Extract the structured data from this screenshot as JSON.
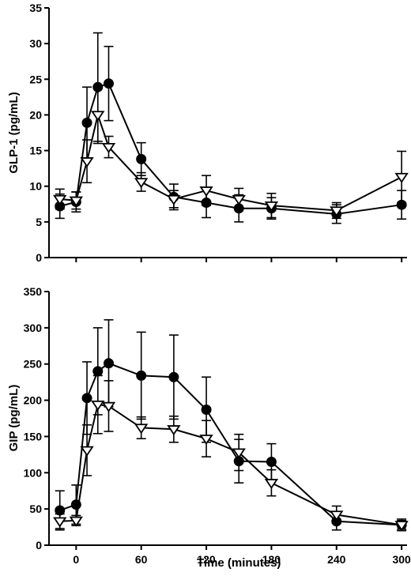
{
  "chart_data": [
    {
      "type": "line",
      "ylabel": "GLP-1 (pg/mL)",
      "xlabel": "",
      "ylim": [
        0,
        35
      ],
      "yticks": [
        0,
        5,
        10,
        15,
        20,
        25,
        30,
        35
      ],
      "xlim": [
        -25,
        305
      ],
      "xticks": [],
      "grid": false,
      "x": [
        -15,
        0,
        10,
        20,
        30,
        60,
        90,
        120,
        150,
        180,
        240,
        300
      ],
      "series": [
        {
          "marker": "filled-circle",
          "color": "#000000",
          "values": [
            7.2,
            7.8,
            18.9,
            23.9,
            24.4,
            13.8,
            8.5,
            7.7,
            6.9,
            6.9,
            6.1,
            7.4
          ],
          "errors": [
            1.7,
            1.4,
            5.0,
            7.6,
            5.2,
            2.3,
            1.8,
            2.1,
            1.9,
            1.5,
            1.3,
            2.0
          ]
        },
        {
          "marker": "open-triangle-down",
          "color": "#000000",
          "values": [
            8.2,
            8.0,
            13.5,
            20.0,
            15.5,
            10.6,
            8.2,
            9.4,
            8.2,
            7.3,
            6.6,
            11.3
          ],
          "errors": [
            1.4,
            1.2,
            3.0,
            4.0,
            1.5,
            1.3,
            1.2,
            2.1,
            1.5,
            1.7,
            1.1,
            3.6
          ]
        }
      ]
    },
    {
      "type": "line",
      "ylabel": "GIP (pg/mL)",
      "xlabel": "Time (minutes)",
      "ylim": [
        0,
        350
      ],
      "yticks": [
        0,
        50,
        100,
        150,
        200,
        250,
        300,
        350
      ],
      "xlim": [
        -25,
        305
      ],
      "xticks": [
        0,
        60,
        120,
        180,
        240,
        300
      ],
      "grid": false,
      "x": [
        -15,
        0,
        10,
        20,
        30,
        60,
        90,
        120,
        150,
        180,
        240,
        300
      ],
      "series": [
        {
          "marker": "filled-circle",
          "color": "#000000",
          "values": [
            48,
            56,
            203,
            240,
            251,
            234,
            232,
            187,
            116,
            115,
            33,
            28
          ],
          "errors": [
            27,
            27,
            50,
            60,
            60,
            60,
            58,
            45,
            30,
            25,
            12,
            8
          ]
        },
        {
          "marker": "open-triangle-down",
          "color": "#000000",
          "values": [
            33,
            34,
            131,
            194,
            192,
            162,
            160,
            147,
            128,
            86,
            42,
            28
          ],
          "errors": [
            10,
            7,
            35,
            40,
            35,
            15,
            18,
            25,
            25,
            18,
            12,
            6
          ]
        }
      ]
    }
  ]
}
